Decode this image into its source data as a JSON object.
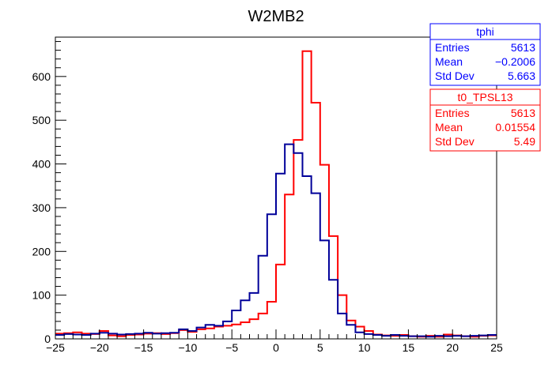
{
  "chart_data": {
    "type": "histogram",
    "title": "W2MB2",
    "xlabel": "",
    "ylabel": "",
    "xlim": [
      -25,
      25
    ],
    "ylim": [
      0,
      690
    ],
    "bin_width": 1,
    "x_ticks": [
      -25,
      -20,
      -15,
      -10,
      -5,
      0,
      5,
      10,
      15,
      20,
      25
    ],
    "x_tick_labels": [
      "−25",
      "−20",
      "−15",
      "−10",
      "−5",
      "0",
      "5",
      "10",
      "15",
      "20",
      "25"
    ],
    "y_ticks": [
      0,
      100,
      200,
      300,
      400,
      500,
      600
    ],
    "y_tick_labels": [
      "0",
      "100",
      "200",
      "300",
      "400",
      "500",
      "600"
    ],
    "series": [
      {
        "name": "t0_TPSL13",
        "color": "#ff0000",
        "bin_edges_start": -25,
        "values": [
          12,
          13,
          15,
          12,
          11,
          18,
          8,
          6,
          9,
          10,
          12,
          13,
          11,
          13,
          20,
          16,
          22,
          24,
          28,
          30,
          33,
          38,
          45,
          58,
          85,
          170,
          330,
          455,
          658,
          540,
          398,
          235,
          100,
          42,
          28,
          18,
          10,
          8,
          7,
          9,
          6,
          5,
          7,
          5,
          10,
          8,
          6,
          5,
          7,
          8
        ]
      },
      {
        "name": "tphi",
        "color": "#000099",
        "bin_edges_start": -25,
        "values": [
          9,
          11,
          10,
          9,
          12,
          14,
          12,
          10,
          11,
          12,
          14,
          12,
          13,
          14,
          22,
          18,
          26,
          32,
          30,
          40,
          65,
          88,
          105,
          190,
          285,
          378,
          445,
          425,
          372,
          333,
          225,
          135,
          58,
          32,
          15,
          11,
          9,
          7,
          9,
          7,
          6,
          6,
          5,
          7,
          6,
          7,
          6,
          7,
          8,
          9
        ]
      }
    ],
    "stats_boxes": [
      {
        "name": "tphi",
        "color": "#0000ff",
        "rows": [
          {
            "label": "Entries",
            "value": "5613"
          },
          {
            "label": "Mean",
            "value": "−0.2006"
          },
          {
            "label": "Std Dev",
            "value": "5.663"
          }
        ]
      },
      {
        "name": "t0_TPSL13",
        "color": "#ff0000",
        "rows": [
          {
            "label": "Entries",
            "value": "5613"
          },
          {
            "label": "Mean",
            "value": "0.01554"
          },
          {
            "label": "Std Dev",
            "value": "5.49"
          }
        ]
      }
    ]
  }
}
